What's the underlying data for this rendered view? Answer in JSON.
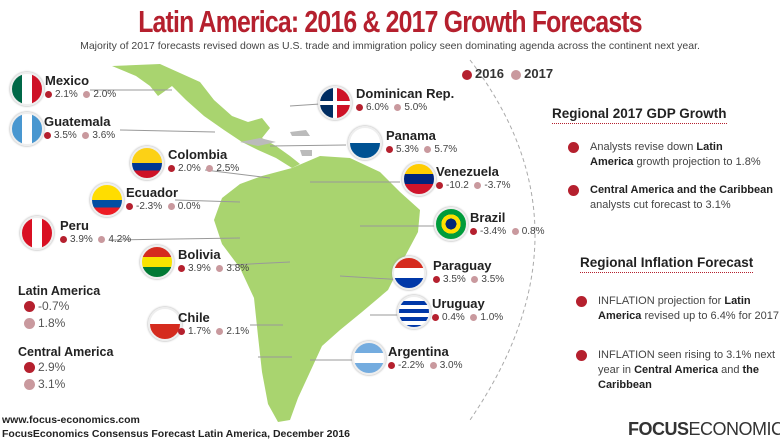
{
  "title": "Latin America: 2016 & 2017 Growth Forecasts",
  "subtitle": "Majority of 2017 forecasts revised down as U.S. trade and immigration policy seen dominating agenda across the continent next year.",
  "legend": {
    "y2016": "2016",
    "y2017": "2017"
  },
  "colors": {
    "c2016": "#b5202e",
    "c2017": "#c9999e",
    "land": "#a9d46f",
    "title": "#b5202e"
  },
  "countries": [
    {
      "name": "Mexico",
      "v2016": "2.1%",
      "v2017": "2.0%",
      "flag": "mexico-flag"
    },
    {
      "name": "Guatemala",
      "v2016": "3.5%",
      "v2017": "3.6%",
      "flag": "guatemala-flag"
    },
    {
      "name": "Colombia",
      "v2016": "2.0%",
      "v2017": "2.5%",
      "flag": "colombia-flag"
    },
    {
      "name": "Ecuador",
      "v2016": "-2.3%",
      "v2017": "0.0%",
      "flag": "ecuador-flag"
    },
    {
      "name": "Peru",
      "v2016": "3.9%",
      "v2017": "4.2%",
      "flag": "peru-flag"
    },
    {
      "name": "Bolivia",
      "v2016": "3.9%",
      "v2017": "3.8%",
      "flag": "bolivia-flag"
    },
    {
      "name": "Chile",
      "v2016": "1.7%",
      "v2017": "2.1%",
      "flag": "chile-flag"
    },
    {
      "name": "Dominican Rep.",
      "v2016": "6.0%",
      "v2017": "5.0%",
      "flag": "dominican-flag"
    },
    {
      "name": "Panama",
      "v2016": "5.3%",
      "v2017": "5.7%",
      "flag": "panama-flag"
    },
    {
      "name": "Venezuela",
      "v2016": "-10.2",
      "v2017": "-3.7%",
      "flag": "venezuela-flag"
    },
    {
      "name": "Brazil",
      "v2016": "-3.4%",
      "v2017": "0.8%",
      "flag": "brazil-flag"
    },
    {
      "name": "Paraguay",
      "v2016": "3.5%",
      "v2017": "3.5%",
      "flag": "paraguay-flag"
    },
    {
      "name": "Uruguay",
      "v2016": "0.4%",
      "v2017": "1.0%",
      "flag": "uruguay-flag"
    },
    {
      "name": "Argentina",
      "v2016": "-2.2%",
      "v2017": "3.0%",
      "flag": "argentina-flag"
    }
  ],
  "regions": [
    {
      "name": "Latin America",
      "v2016": "-0.7%",
      "v2017": "1.8%"
    },
    {
      "name": "Central America",
      "v2016": "2.9%",
      "v2017": "3.1%"
    }
  ],
  "gdp": {
    "heading": "Regional 2017 GDP Growth",
    "b1a": "Analysts revise down ",
    "b1b": "Latin America",
    "b1c": " growth projection to 1.8%",
    "b2a": "Central America and the Caribbean",
    "b2b": " analysts cut forecast to 3.1%"
  },
  "inflation": {
    "heading": "Regional Inflation Forecast",
    "b1a": "INFLATION projection for ",
    "b1b": "Latin America",
    "b1c": " revised up to 6.4% for 2017",
    "b2a": "INFLATION seen rising to 3.1% next year in ",
    "b2b": "Central America",
    "b2c": " and ",
    "b2d": "the Caribbean"
  },
  "footer": {
    "url": "www.focus-economics.com",
    "source": "FocusEconomics Consensus Forecast Latin America, December 2016"
  },
  "logo": {
    "bold": "FOCUS",
    "rest": "ECONOMICS"
  }
}
